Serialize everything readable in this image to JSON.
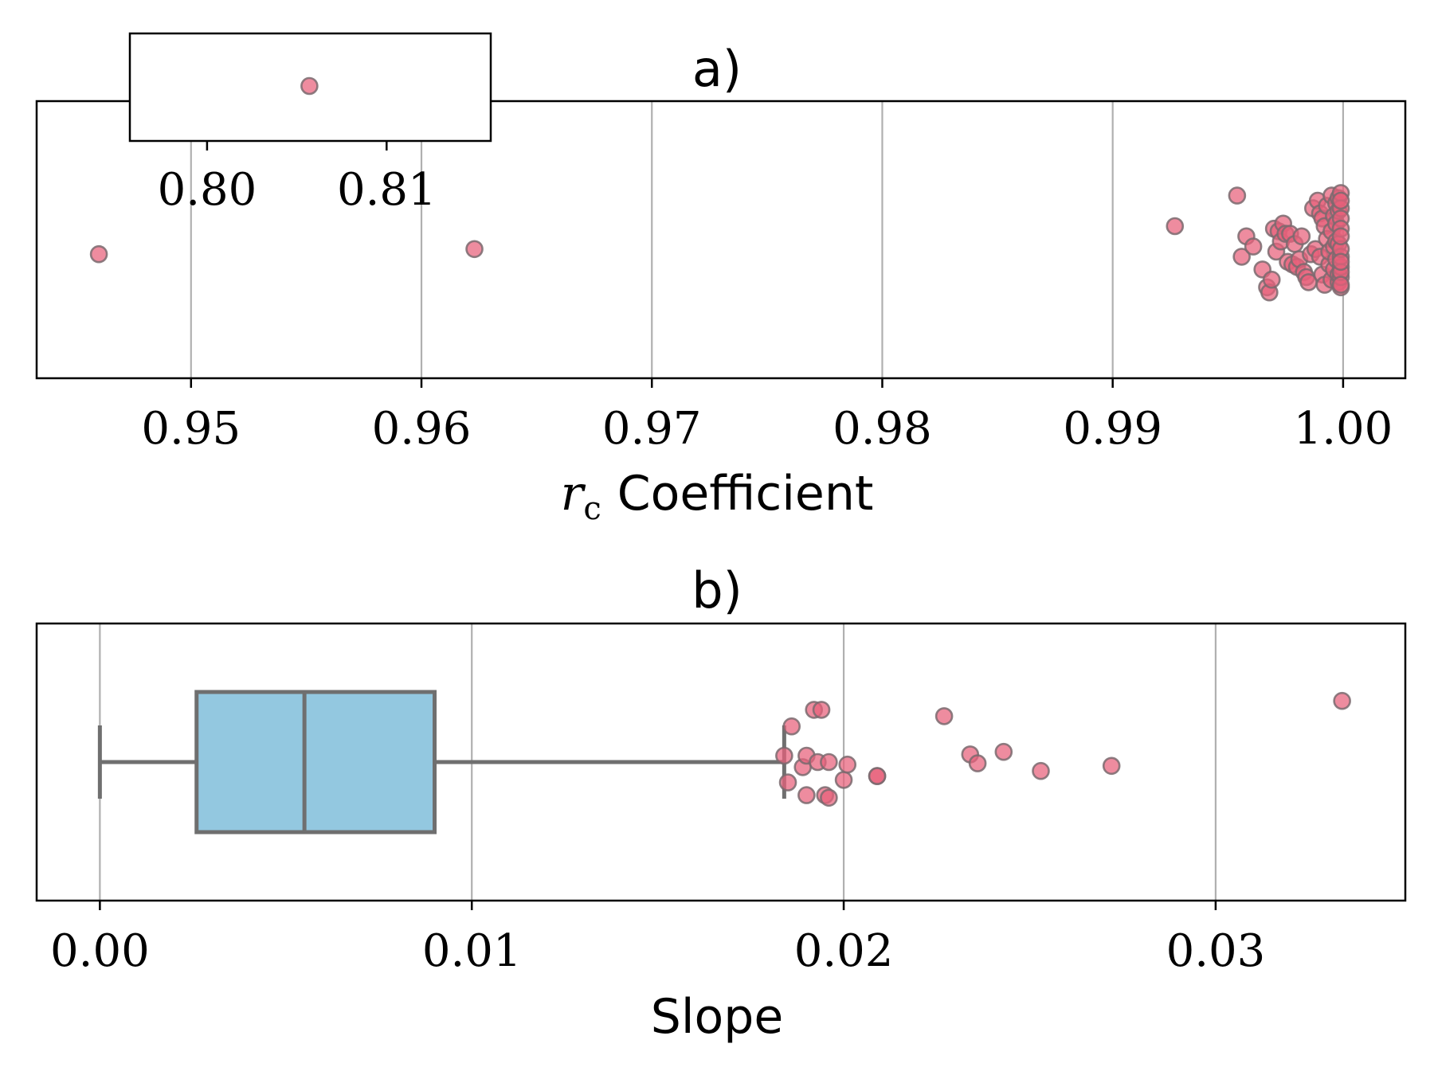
{
  "chart_data": [
    {
      "type": "scatter",
      "title": "a)",
      "xlabel_var": "r",
      "xlabel_sub": "c",
      "xlabel_text": "Coefficient",
      "xlim": [
        0.9433,
        1.0027
      ],
      "xticks": [
        0.95,
        0.96,
        0.97,
        0.98,
        0.99,
        1.0
      ],
      "xtick_labels": [
        "0.95",
        "0.96",
        "0.97",
        "0.98",
        "0.99",
        "1.00"
      ],
      "grid": true,
      "point_color": "#e8607a",
      "edge_color": "#7a6a6e",
      "points": [
        0.946,
        0.9623,
        0.9927,
        0.9954,
        0.9956,
        0.9958,
        0.9961,
        0.9965,
        0.9967,
        0.9968,
        0.9969,
        0.997,
        0.9971,
        0.9972,
        0.9973,
        0.9974,
        0.9975,
        0.9976,
        0.9977,
        0.9978,
        0.9979,
        0.998,
        0.9981,
        0.9982,
        0.9983,
        0.9984,
        0.9985,
        0.9986,
        0.9987,
        0.9988,
        0.9989,
        0.999,
        0.999,
        0.9991,
        0.9991,
        0.9992,
        0.9992,
        0.9993,
        0.9993,
        0.9994,
        0.9994,
        0.9995,
        0.9995,
        0.9995,
        0.9996,
        0.9996,
        0.9996,
        0.9997,
        0.9997,
        0.9997,
        0.9997,
        0.9998,
        0.9998,
        0.9998,
        0.9998,
        0.9998,
        0.9999,
        0.9999,
        0.9999,
        0.9999,
        0.9999,
        0.9999,
        0.9999,
        0.9999,
        0.9999,
        0.9999,
        0.9999,
        0.9999,
        0.9999,
        0.9999
      ],
      "jitter": [
        0.12,
        0.08,
        -0.1,
        -0.34,
        0.14,
        -0.02,
        0.06,
        0.24,
        0.38,
        0.42,
        0.32,
        -0.08,
        0.1,
        -0.06,
        0.02,
        -0.12,
        -0.04,
        0.18,
        -0.04,
        0.2,
        0.04,
        0.22,
        0.16,
        -0.02,
        0.26,
        0.3,
        0.34,
        0.12,
        -0.24,
        0.08,
        -0.3,
        0.14,
        -0.2,
        0.28,
        -0.16,
        0.36,
        -0.1,
        0.0,
        -0.26,
        0.2,
        0.1,
        -0.34,
        0.32,
        -0.06,
        0.06,
        -0.18,
        0.24,
        -0.28,
        0.16,
        0.02,
        -0.12,
        0.34,
        -0.22,
        0.04,
        0.28,
        -0.32,
        0.38,
        -0.36,
        0.3,
        -0.24,
        0.22,
        -0.16,
        0.14,
        -0.08,
        0.08,
        -0.02,
        0.26,
        0.18,
        -0.3,
        0.36
      ],
      "inset": {
        "xlim": [
          0.7957,
          0.8158
        ],
        "xticks": [
          0.8,
          0.81
        ],
        "xtick_labels": [
          "0.80",
          "0.81"
        ],
        "points": [
          0.8057
        ]
      }
    },
    {
      "type": "box",
      "title": "b)",
      "xlabel": "Slope",
      "xlim": [
        -0.0017,
        0.0351
      ],
      "xticks": [
        0.0,
        0.01,
        0.02,
        0.03
      ],
      "xtick_labels": [
        "0.00",
        "0.01",
        "0.02",
        "0.03"
      ],
      "grid": true,
      "box_color": "#93c8e0",
      "line_color": "#6f6f6f",
      "point_color": "#e8607a",
      "box": {
        "whisker_low": 0.0,
        "q1": 0.0026,
        "median": 0.0055,
        "q3": 0.009,
        "whisker_high": 0.0184
      },
      "outliers": [
        0.0184,
        0.0185,
        0.0186,
        0.0189,
        0.019,
        0.019,
        0.0192,
        0.0193,
        0.0194,
        0.0195,
        0.0196,
        0.0196,
        0.02,
        0.0201,
        0.0209,
        0.0209,
        0.0227,
        0.0234,
        0.0236,
        0.0243,
        0.0253,
        0.0272,
        0.0334
      ],
      "outlier_jitter": [
        -0.05,
        0.16,
        -0.28,
        0.04,
        -0.05,
        0.26,
        -0.41,
        0.0,
        -0.41,
        0.26,
        0.0,
        0.28,
        0.14,
        0.02,
        0.11,
        0.11,
        -0.36,
        -0.06,
        0.01,
        -0.08,
        0.07,
        0.03,
        -0.48
      ]
    }
  ]
}
